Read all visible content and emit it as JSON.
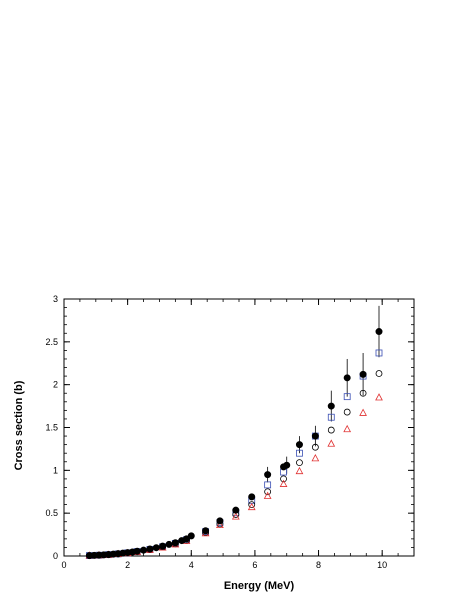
{
  "chart_data": {
    "type": "scatter",
    "title": "",
    "xlabel": "Energy (MeV)",
    "ylabel": "Cross section (b)",
    "xlim": [
      0,
      11
    ],
    "ylim": [
      0,
      3
    ],
    "xticks": [
      "0",
      "2",
      "4",
      "6",
      "8",
      "10"
    ],
    "yticks": [
      "0",
      "0.5",
      "1",
      "1.5",
      "2",
      "2.5",
      "3"
    ],
    "grid": false,
    "legend": "none",
    "series": [
      {
        "marker": "filled-circle",
        "color": "#000000",
        "points": [
          {
            "x": 0.8,
            "y": 0.005
          },
          {
            "x": 0.95,
            "y": 0.007
          },
          {
            "x": 1.1,
            "y": 0.01
          },
          {
            "x": 1.25,
            "y": 0.013
          },
          {
            "x": 1.4,
            "y": 0.017
          },
          {
            "x": 1.55,
            "y": 0.022
          },
          {
            "x": 1.7,
            "y": 0.027
          },
          {
            "x": 1.85,
            "y": 0.033
          },
          {
            "x": 2.0,
            "y": 0.04
          },
          {
            "x": 2.15,
            "y": 0.047
          },
          {
            "x": 2.3,
            "y": 0.056
          },
          {
            "x": 2.5,
            "y": 0.068
          },
          {
            "x": 2.7,
            "y": 0.082
          },
          {
            "x": 2.9,
            "y": 0.097
          },
          {
            "x": 3.1,
            "y": 0.115
          },
          {
            "x": 3.3,
            "y": 0.135
          },
          {
            "x": 3.5,
            "y": 0.155
          },
          {
            "x": 3.7,
            "y": 0.18
          },
          {
            "x": 3.85,
            "y": 0.2
          },
          {
            "x": 4.0,
            "y": 0.235
          },
          {
            "x": 4.45,
            "y": 0.295
          },
          {
            "x": 4.9,
            "y": 0.41
          },
          {
            "x": 5.4,
            "y": 0.535
          },
          {
            "x": 5.9,
            "y": 0.69
          },
          {
            "x": 6.4,
            "y": 0.95
          },
          {
            "x": 6.9,
            "y": 1.04
          },
          {
            "x": 7.0,
            "y": 1.06
          },
          {
            "x": 7.4,
            "y": 1.3
          },
          {
            "x": 7.9,
            "y": 1.4
          },
          {
            "x": 8.4,
            "y": 1.75
          },
          {
            "x": 8.9,
            "y": 2.08
          },
          {
            "x": 9.4,
            "y": 2.12
          },
          {
            "x": 9.9,
            "y": 2.62
          }
        ],
        "errors": [
          {
            "x": 6.4,
            "y": 0.95,
            "err": 0.09
          },
          {
            "x": 7.0,
            "y": 1.06,
            "err": 0.1
          },
          {
            "x": 7.4,
            "y": 1.3,
            "err": 0.1
          },
          {
            "x": 7.9,
            "y": 1.4,
            "err": 0.12
          },
          {
            "x": 8.4,
            "y": 1.75,
            "err": 0.18
          },
          {
            "x": 8.9,
            "y": 2.08,
            "err": 0.22
          },
          {
            "x": 9.4,
            "y": 2.12,
            "err": 0.25
          },
          {
            "x": 9.9,
            "y": 2.62,
            "err": 0.3
          }
        ]
      },
      {
        "marker": "open-square",
        "color": "#3a4fb4",
        "points": [
          {
            "x": 0.8,
            "y": 0.005
          },
          {
            "x": 1.1,
            "y": 0.009
          },
          {
            "x": 1.4,
            "y": 0.016
          },
          {
            "x": 1.7,
            "y": 0.025
          },
          {
            "x": 2.0,
            "y": 0.037
          },
          {
            "x": 2.3,
            "y": 0.052
          },
          {
            "x": 2.7,
            "y": 0.077
          },
          {
            "x": 3.1,
            "y": 0.108
          },
          {
            "x": 3.5,
            "y": 0.147
          },
          {
            "x": 3.85,
            "y": 0.19
          },
          {
            "x": 4.45,
            "y": 0.285
          },
          {
            "x": 4.9,
            "y": 0.39
          },
          {
            "x": 5.4,
            "y": 0.505
          },
          {
            "x": 5.9,
            "y": 0.65
          },
          {
            "x": 6.4,
            "y": 0.83
          },
          {
            "x": 6.9,
            "y": 0.98
          },
          {
            "x": 7.4,
            "y": 1.2
          },
          {
            "x": 7.9,
            "y": 1.4
          },
          {
            "x": 8.4,
            "y": 1.62
          },
          {
            "x": 8.9,
            "y": 1.86
          },
          {
            "x": 9.4,
            "y": 2.1
          },
          {
            "x": 9.9,
            "y": 2.37
          }
        ]
      },
      {
        "marker": "open-circle",
        "color": "#000000",
        "points": [
          {
            "x": 0.8,
            "y": 0.005
          },
          {
            "x": 1.1,
            "y": 0.009
          },
          {
            "x": 1.4,
            "y": 0.015
          },
          {
            "x": 1.7,
            "y": 0.024
          },
          {
            "x": 2.0,
            "y": 0.035
          },
          {
            "x": 2.3,
            "y": 0.05
          },
          {
            "x": 2.7,
            "y": 0.074
          },
          {
            "x": 3.1,
            "y": 0.104
          },
          {
            "x": 3.5,
            "y": 0.142
          },
          {
            "x": 3.85,
            "y": 0.183
          },
          {
            "x": 4.45,
            "y": 0.275
          },
          {
            "x": 4.9,
            "y": 0.375
          },
          {
            "x": 5.4,
            "y": 0.485
          },
          {
            "x": 5.9,
            "y": 0.6
          },
          {
            "x": 6.4,
            "y": 0.75
          },
          {
            "x": 6.9,
            "y": 0.9
          },
          {
            "x": 7.4,
            "y": 1.09
          },
          {
            "x": 7.9,
            "y": 1.27
          },
          {
            "x": 8.4,
            "y": 1.47
          },
          {
            "x": 8.9,
            "y": 1.68
          },
          {
            "x": 9.4,
            "y": 1.9
          },
          {
            "x": 9.9,
            "y": 2.13
          }
        ]
      },
      {
        "marker": "open-triangle",
        "color": "#e03030",
        "points": [
          {
            "x": 0.8,
            "y": 0.005
          },
          {
            "x": 1.1,
            "y": 0.008
          },
          {
            "x": 1.4,
            "y": 0.014
          },
          {
            "x": 1.7,
            "y": 0.022
          },
          {
            "x": 2.0,
            "y": 0.033
          },
          {
            "x": 2.3,
            "y": 0.047
          },
          {
            "x": 2.7,
            "y": 0.07
          },
          {
            "x": 3.1,
            "y": 0.098
          },
          {
            "x": 3.5,
            "y": 0.135
          },
          {
            "x": 3.85,
            "y": 0.175
          },
          {
            "x": 4.45,
            "y": 0.265
          },
          {
            "x": 4.9,
            "y": 0.36
          },
          {
            "x": 5.4,
            "y": 0.46
          },
          {
            "x": 5.9,
            "y": 0.57
          },
          {
            "x": 6.4,
            "y": 0.7
          },
          {
            "x": 6.9,
            "y": 0.84
          },
          {
            "x": 7.4,
            "y": 0.99
          },
          {
            "x": 7.9,
            "y": 1.14
          },
          {
            "x": 8.4,
            "y": 1.31
          },
          {
            "x": 8.9,
            "y": 1.48
          },
          {
            "x": 9.4,
            "y": 1.67
          },
          {
            "x": 9.9,
            "y": 1.85
          }
        ]
      }
    ]
  }
}
